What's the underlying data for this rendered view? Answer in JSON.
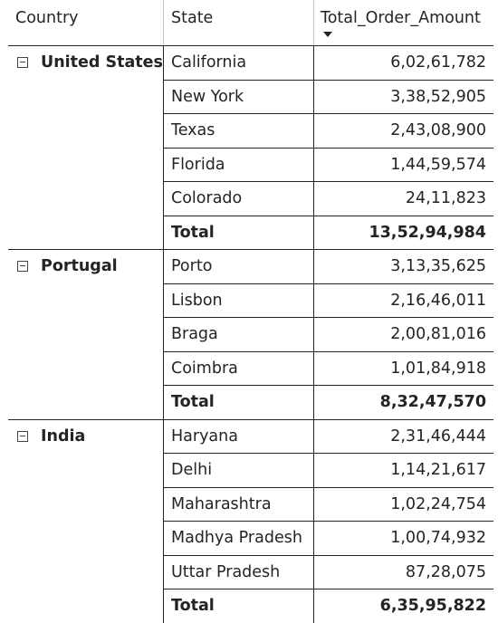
{
  "headers": {
    "country": "Country",
    "state": "State",
    "amount": "Total_Order_Amount"
  },
  "groups": [
    {
      "country": "United States",
      "rows": [
        {
          "state": "California",
          "amount": "6,02,61,782"
        },
        {
          "state": "New York",
          "amount": "3,38,52,905"
        },
        {
          "state": "Texas",
          "amount": "2,43,08,900"
        },
        {
          "state": "Florida",
          "amount": "1,44,59,574"
        },
        {
          "state": "Colorado",
          "amount": "24,11,823"
        }
      ],
      "total_label": "Total",
      "total_amount": "13,52,94,984"
    },
    {
      "country": "Portugal",
      "rows": [
        {
          "state": "Porto",
          "amount": "3,13,35,625"
        },
        {
          "state": "Lisbon",
          "amount": "2,16,46,011"
        },
        {
          "state": "Braga",
          "amount": "2,00,81,016"
        },
        {
          "state": "Coimbra",
          "amount": "1,01,84,918"
        }
      ],
      "total_label": "Total",
      "total_amount": "8,32,47,570"
    },
    {
      "country": "India",
      "rows": [
        {
          "state": "Haryana",
          "amount": "2,31,46,444"
        },
        {
          "state": "Delhi",
          "amount": "1,14,21,617"
        },
        {
          "state": "Maharashtra",
          "amount": "1,02,24,754"
        },
        {
          "state": "Madhya Pradesh",
          "amount": "1,00,74,932"
        },
        {
          "state": "Uttar Pradesh",
          "amount": "87,28,075"
        }
      ],
      "total_label": "Total",
      "total_amount": "6,35,95,822"
    }
  ]
}
